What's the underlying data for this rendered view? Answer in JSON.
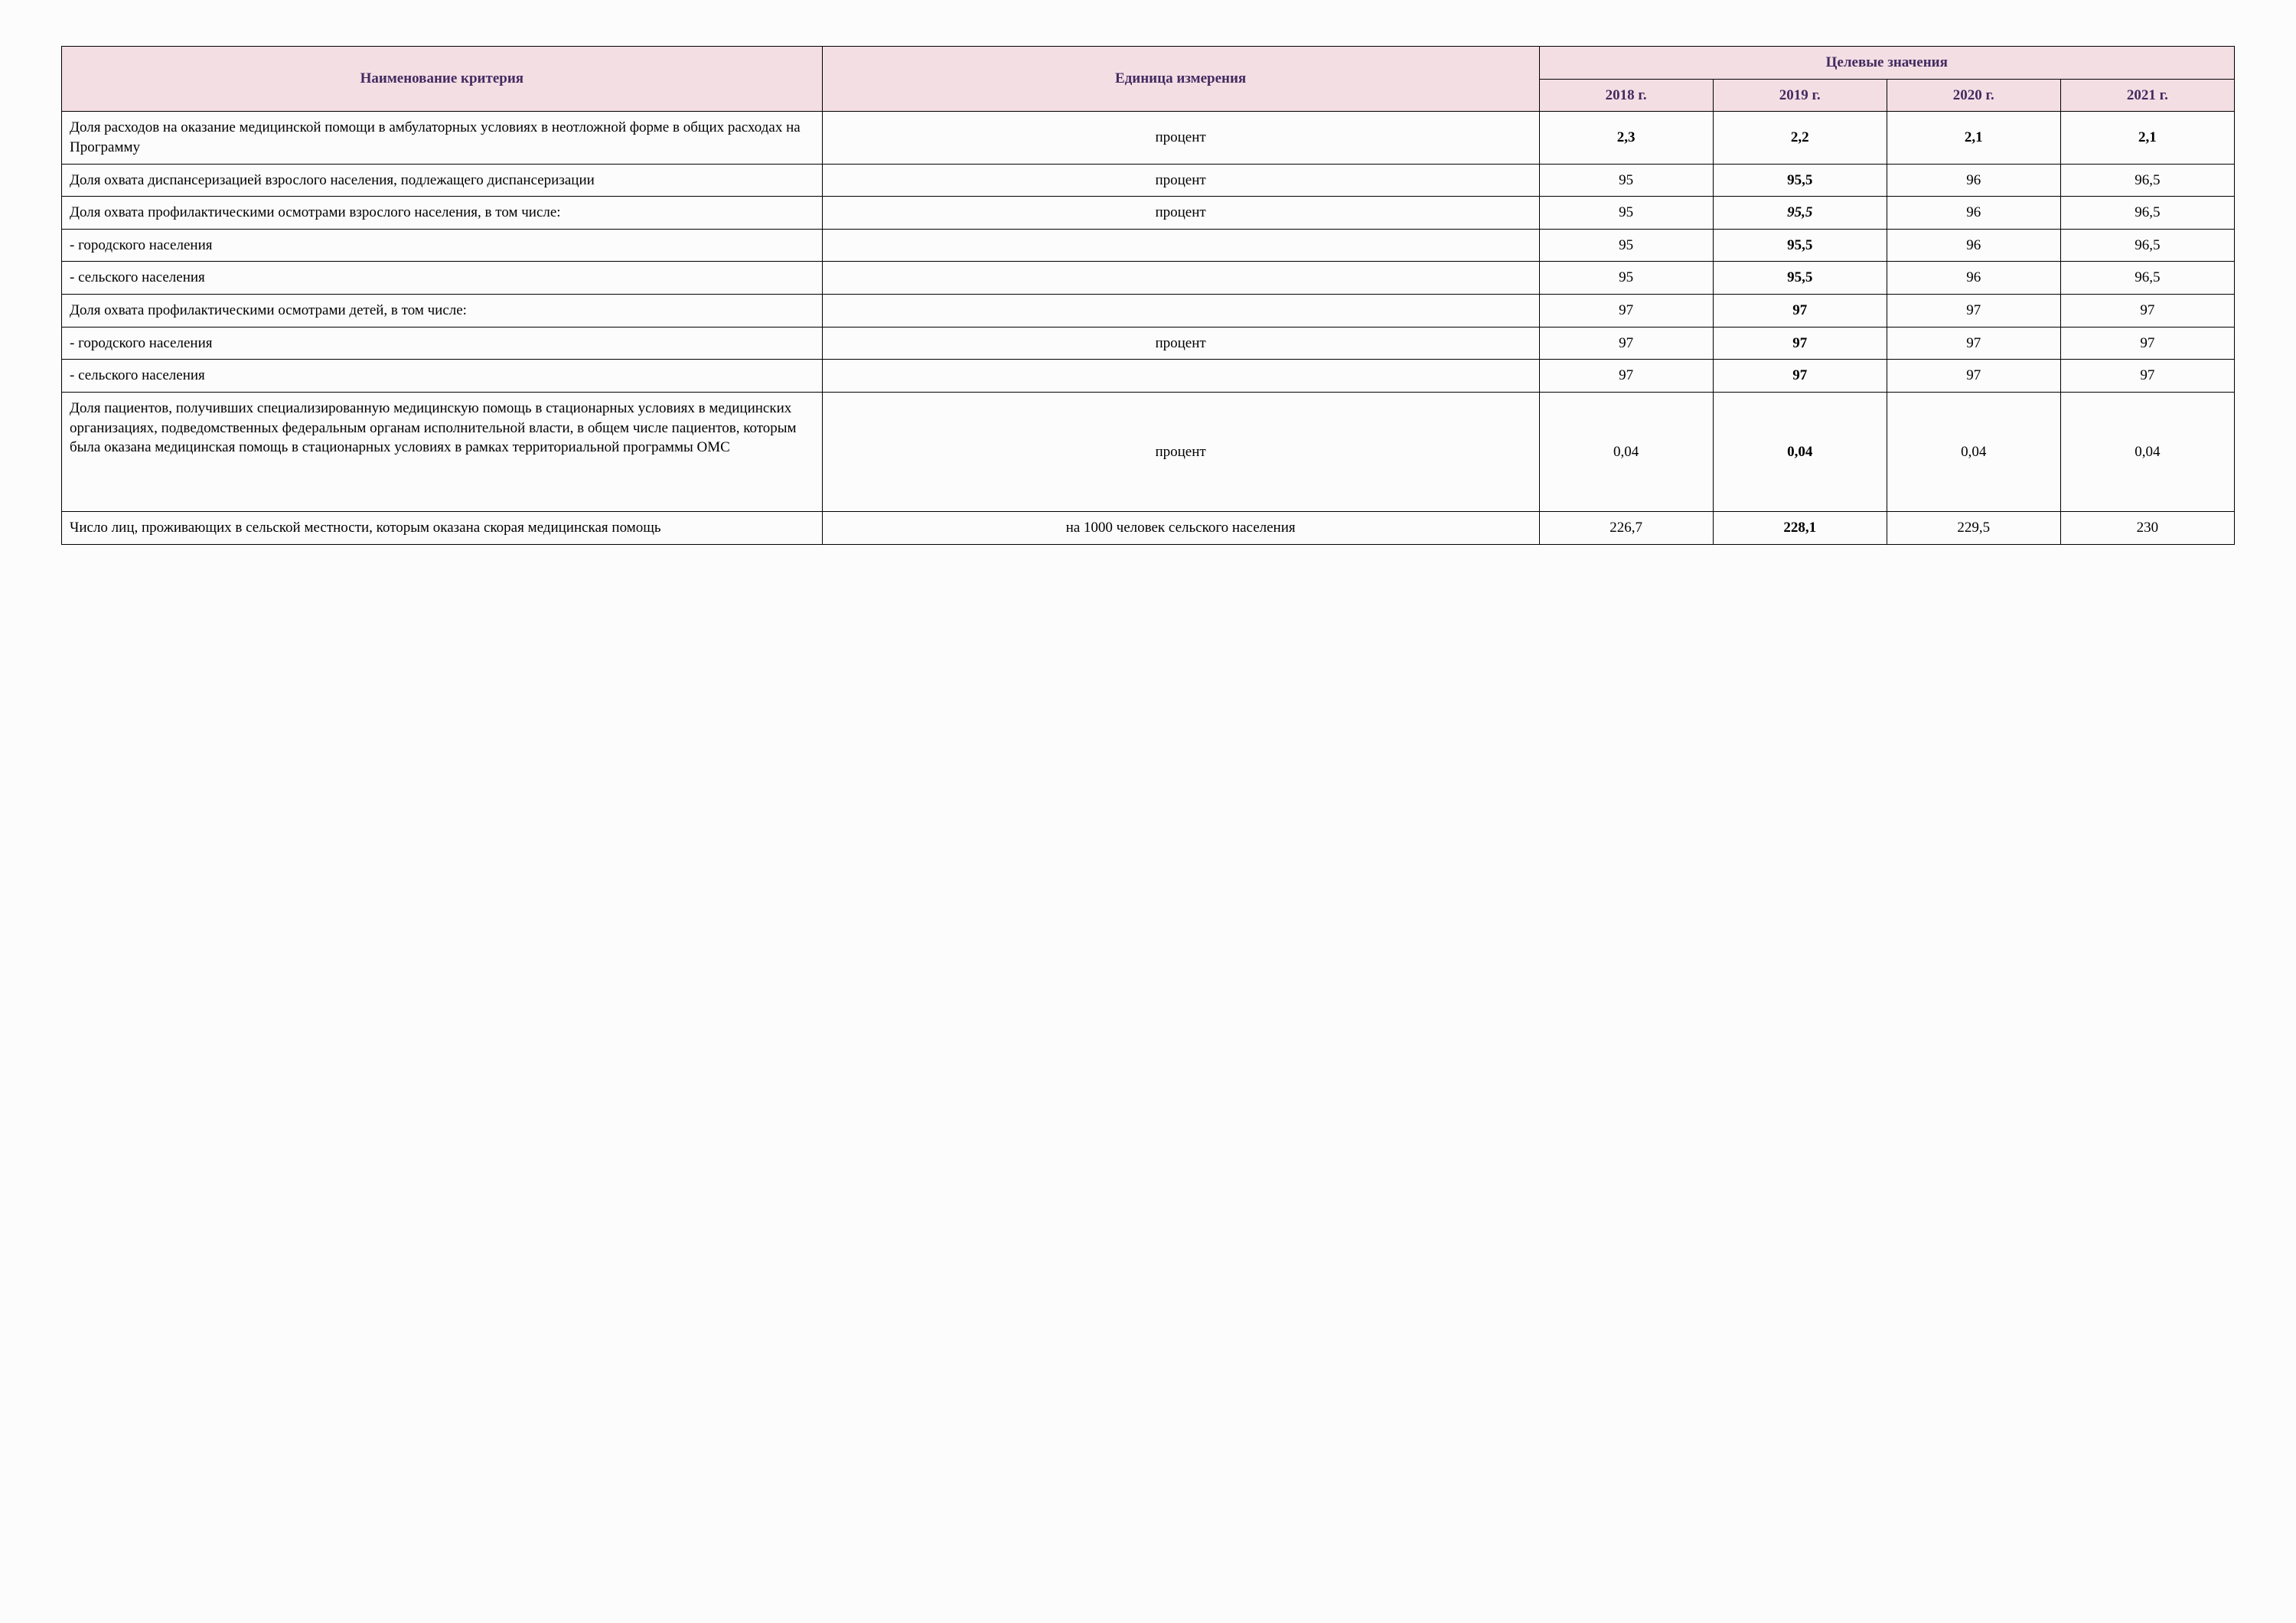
{
  "table": {
    "header": {
      "criterion": "Наименование критерия",
      "unit": "Единица измерения",
      "targets": "Целевые значения",
      "years": [
        "2018 г.",
        "2019 г.",
        "2020 г.",
        "2021 г."
      ]
    },
    "colors": {
      "header_bg": "#f3dee4",
      "header_text": "#432b60",
      "border": "#000000",
      "page_bg": "#fdfcfc"
    },
    "rows": [
      {
        "name": "Доля расходов на оказание медицинской помощи в амбулаторных условиях в неотложной форме в общих расходах на Программу",
        "unit": "процент",
        "values": [
          "2,3",
          "2,2",
          "2,1",
          "2,1"
        ],
        "bold_all": true
      },
      {
        "name": "Доля охвата диспансеризацией взрослого населения, подлежащего диспансеризации",
        "unit": "процент",
        "values": [
          "95",
          "95,5",
          "96",
          "96,5"
        ],
        "bold_2019": true
      },
      {
        "name": "Доля охвата профилактическими осмотрами взрослого населения, в том числе:",
        "unit": "процент",
        "values": [
          "95",
          "95,5",
          "96",
          "96,5"
        ],
        "bold_2019": true,
        "italic_2019": true
      },
      {
        "name": "- городского населения",
        "unit": "",
        "values": [
          "95",
          "95,5",
          "96",
          "96,5"
        ],
        "bold_2019": true
      },
      {
        "name": "- сельского населения",
        "unit": "",
        "values": [
          "95",
          "95,5",
          "96",
          "96,5"
        ],
        "bold_2019": true
      },
      {
        "name": "Доля охвата профилактическими осмотрами детей, в том числе:",
        "unit": "",
        "values": [
          "97",
          "97",
          "97",
          "97"
        ],
        "bold_2019": true
      },
      {
        "name": "- городского населения",
        "unit": "процент",
        "values": [
          "97",
          "97",
          "97",
          "97"
        ],
        "bold_2019": true
      },
      {
        "name": "- сельского населения",
        "unit": "",
        "values": [
          "97",
          "97",
          "97",
          "97"
        ],
        "bold_2019": true
      },
      {
        "name": "Доля пациентов, получивших специализированную медицинскую помощь в стационарных условиях в медицинских организациях, подведомственных федеральным органам исполнительной власти, в общем числе пациентов, которым была оказана медицинская помощь в стационарных условиях в рамках территориальной программы ОМС",
        "unit": "процент",
        "values": [
          "0,04",
          "0,04",
          "0,04",
          "0,04"
        ],
        "bold_2019": true,
        "tall": true
      },
      {
        "name": "Число лиц, проживающих в сельской местности, которым оказана скорая медицинская помощь",
        "unit": "на 1000 человек сельского населения",
        "values": [
          "226,7",
          "228,1",
          "229,5",
          "230"
        ],
        "bold_2019": true
      }
    ]
  }
}
